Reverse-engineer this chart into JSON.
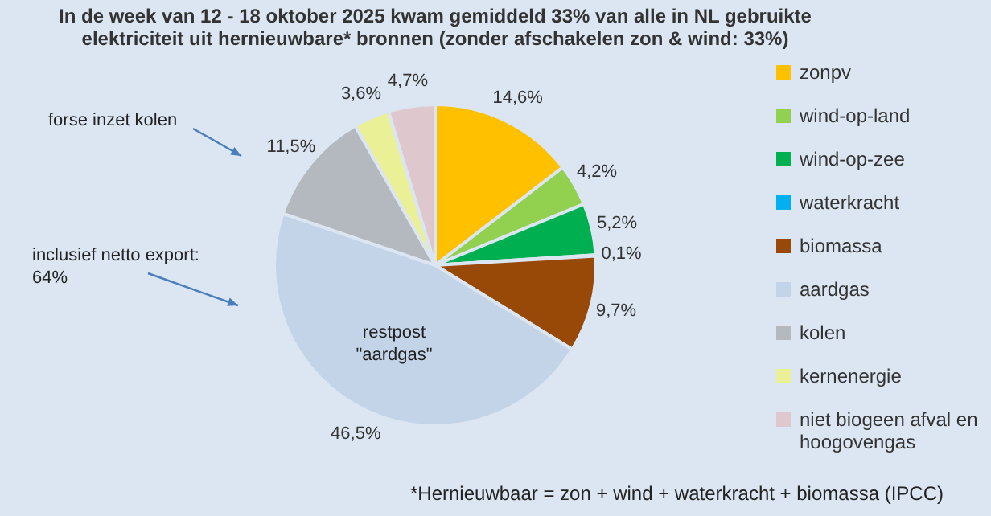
{
  "chart_data": {
    "type": "pie",
    "title": "In de week van 12 - 18 oktober 2025 kwam gemiddeld 33% van alle in NL gebruikte elektriciteit uit hernieuwbare* bronnen  (zonder afschakelen zon & wind: 33%)",
    "categories": [
      "zonpv",
      "wind-op-land",
      "wind-op-zee",
      "waterkracht",
      "biomassa",
      "aardgas",
      "kolen",
      "kernenergie",
      "niet biogeen afval en hoogovengas"
    ],
    "values": [
      14.6,
      4.2,
      5.2,
      0.1,
      9.7,
      46.5,
      11.5,
      3.6,
      4.7
    ],
    "colors": [
      "#ffc000",
      "#92d050",
      "#00b050",
      "#00b0f0",
      "#984807",
      "#c3d4e9",
      "#b4b9c0",
      "#eaf096",
      "#dfc8cd"
    ],
    "value_labels": [
      "14,6%",
      "4,2%",
      "5,2%",
      "0,1%",
      "9,7%",
      "46,5%",
      "11,5%",
      "3,6%",
      "4,7%"
    ],
    "legend": "right",
    "annotations": [
      "forse inzet kolen",
      "inclusief netto export: 64%",
      "restpost \"aardgas\"",
      "*Hernieuwbaar = zon + wind + waterkracht + biomassa (IPCC)"
    ]
  }
}
